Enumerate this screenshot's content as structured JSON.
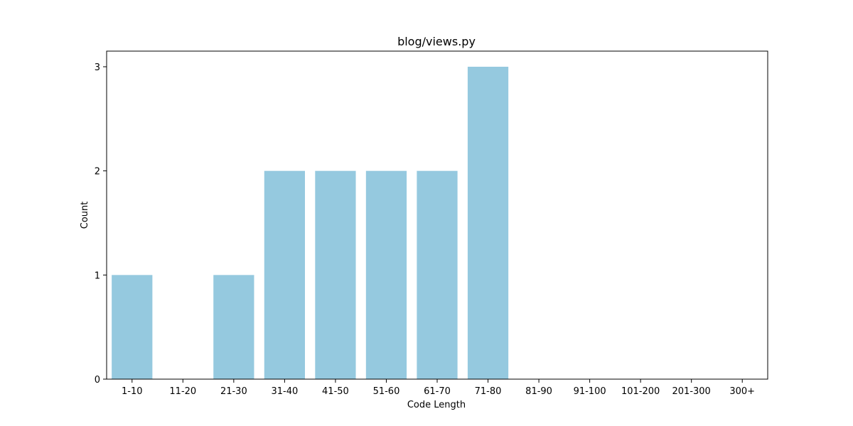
{
  "chart_data": {
    "type": "bar",
    "title": "blog/views.py",
    "xlabel": "Code Length",
    "ylabel": "Count",
    "categories": [
      "1-10",
      "11-20",
      "21-30",
      "31-40",
      "41-50",
      "51-60",
      "61-70",
      "71-80",
      "81-90",
      "91-100",
      "101-200",
      "201-300",
      "300+"
    ],
    "values": [
      1,
      0,
      1,
      2,
      2,
      2,
      2,
      3,
      0,
      0,
      0,
      0,
      0
    ],
    "ylim": [
      0,
      3.15
    ],
    "yticks": [
      0,
      1,
      2,
      3
    ],
    "bar_color": "#95c9df",
    "grid": false,
    "legend": "none"
  }
}
